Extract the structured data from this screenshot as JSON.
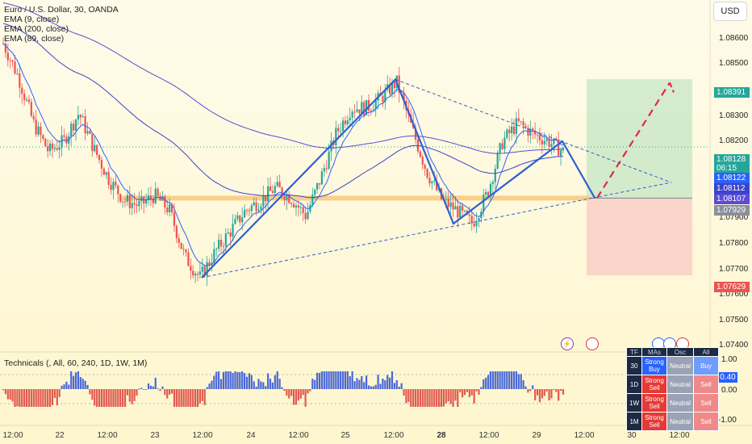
{
  "legend": {
    "symbol": "Euro / U.S. Dollar, 30, OANDA",
    "ema1": "EMA (9, close)",
    "ema2": "EMA (200, close)",
    "ema3": "EMA (89, close)"
  },
  "currency_button": "USD",
  "price_axis": [
    "1.08600",
    "1.08500",
    "1.08300",
    "1.08200",
    "1.07900",
    "1.07800",
    "1.07700",
    "1.07600",
    "1.07500",
    "1.07400"
  ],
  "price_tags": {
    "target": "1.08391",
    "last": "1.08128",
    "countdown": "06:15",
    "ema9": "1.08122",
    "ema89": "1.08112",
    "ema200": "1.08107",
    "entry": "1.07929",
    "stop": "1.07629"
  },
  "time_axis": [
    "12:00",
    "22",
    "12:00",
    "23",
    "12:00",
    "24",
    "12:00",
    "25",
    "12:00",
    "28",
    "12:00",
    "29",
    "12:00",
    "30",
    "12:00"
  ],
  "indicator": {
    "legend": "Technicals (, All, 60, 240, 1D, 1W, 1M)",
    "axis": [
      "1.00",
      "0.00",
      "-1.00"
    ],
    "value": "0.40"
  },
  "tech_table": {
    "headers": [
      "TF",
      "MAs",
      "Osc",
      "All"
    ],
    "rows": [
      {
        "tf": "30",
        "mas": "Strong Buy",
        "osc": "Neutral",
        "all": "Buy"
      },
      {
        "tf": "1D",
        "mas": "Strong Sell",
        "osc": "Neutral",
        "all": "Sell"
      },
      {
        "tf": "1W",
        "mas": "Strong Sell",
        "osc": "Neutral",
        "all": "Sell"
      },
      {
        "tf": "1M",
        "mas": "Strong Sell",
        "osc": "Neutral",
        "all": "Sell"
      }
    ]
  },
  "colors": {
    "up": "#26a69a",
    "down": "#ef5350",
    "pattern": "#2f5fd0",
    "ema": "#3b44c9",
    "target_zone": "#cfe9c9",
    "stop_zone": "#f9d0c8",
    "support": "#f7c97a",
    "arrow": "#e0284a"
  },
  "chart_data": {
    "type": "candlestick",
    "ylim": [
      1.0735,
      1.0868
    ],
    "path_prices": [
      1.0853,
      1.084,
      1.0822,
      1.0811,
      1.0815,
      1.0826,
      1.0812,
      1.08,
      1.0792,
      1.079,
      1.0794,
      1.0788,
      1.077,
      1.0762,
      1.0772,
      1.078,
      1.0788,
      1.0792,
      1.0797,
      1.0793,
      1.0786,
      1.0801,
      1.0818,
      1.0828,
      1.0828,
      1.0832,
      1.0838,
      1.082,
      1.0803,
      1.0792,
      1.0788,
      1.0783,
      1.0795,
      1.0815,
      1.0822,
      1.0818,
      1.0815,
      1.0811
    ],
    "support_level": 1.07929,
    "target_level": 1.08391,
    "stop_level": 1.07629,
    "pattern_points": [
      1.0762,
      1.0839,
      1.0783,
      1.0815,
      1.0793
    ],
    "projection": [
      1.0793,
      1.0839
    ]
  }
}
